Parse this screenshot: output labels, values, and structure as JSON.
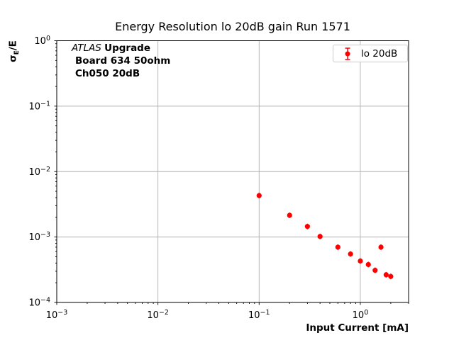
{
  "figure": {
    "ylabel_parts": {
      "sigma": "σ",
      "sub": "E",
      "rest": "/E"
    },
    "annotation": {
      "line1_italic": "ATLAS",
      "line1_bold": "Upgrade",
      "line2": "Board 634 50ohm",
      "line3": "Ch050 20dB"
    },
    "legend": {
      "label": "lo 20dB"
    }
  },
  "colors": {
    "marker": "#ff0000",
    "grid": "#b0b0b0",
    "spine": "#000000",
    "legend_border": "#cccccc"
  },
  "chart_data": {
    "type": "scatter",
    "title": "Energy Resolution lo 20dB gain Run 1571",
    "xlabel": "Input Current [mA]",
    "ylabel": "σ_E/E",
    "xscale": "log",
    "yscale": "log",
    "xlim": [
      0.001,
      3
    ],
    "ylim": [
      0.0001,
      1
    ],
    "x_tick_exponents": [
      -3,
      -2,
      -1,
      0
    ],
    "y_tick_exponents": [
      0,
      -1,
      -2,
      -3,
      -4
    ],
    "x_tick_labels": [
      "10⁻³",
      "10⁻²",
      "10⁻¹",
      "10⁰"
    ],
    "y_tick_labels": [
      "10⁰",
      "10⁻¹",
      "10⁻²",
      "10⁻³",
      "10⁻⁴"
    ],
    "grid": "major",
    "legend_position": "upper right",
    "series": [
      {
        "name": "lo 20dB",
        "color": "#ff0000",
        "marker": "circle-errorbar",
        "x": [
          0.1,
          0.2,
          0.3,
          0.4,
          0.6,
          0.8,
          1.0,
          1.2,
          1.4,
          1.6,
          1.8,
          2.0
        ],
        "y": [
          0.0043,
          0.00215,
          0.00145,
          0.00102,
          0.0007,
          0.00055,
          0.00043,
          0.00038,
          0.00031,
          0.0007,
          0.000265,
          0.00025
        ]
      }
    ]
  }
}
